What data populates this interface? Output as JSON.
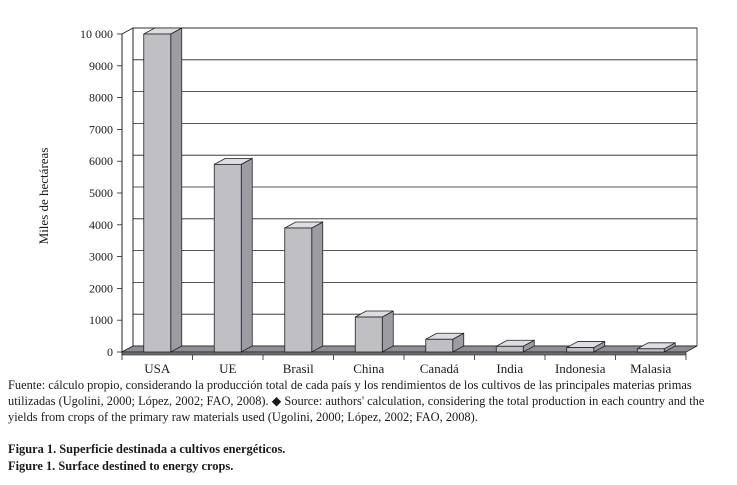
{
  "chart_data": {
    "type": "bar",
    "style": "3d-column",
    "ylabel": "Miles de hectáreas",
    "xlabel": "",
    "categories": [
      "USA",
      "UE",
      "Brasil",
      "China",
      "Canadá",
      "India",
      "Indonesia",
      "Malasia"
    ],
    "values": [
      10000,
      5900,
      3900,
      1100,
      400,
      180,
      140,
      100
    ],
    "ylim": [
      0,
      10000
    ],
    "yticks": [
      0,
      1000,
      2000,
      3000,
      4000,
      5000,
      6000,
      7000,
      8000,
      9000,
      10000
    ],
    "ytick_labels": [
      "0",
      "1000",
      "2000",
      "3000",
      "4000",
      "5000",
      "6000",
      "7000",
      "8000",
      "9000",
      "10 000"
    ],
    "grid": true,
    "legend": "none",
    "colors": {
      "bar_front": "#c0c0c4",
      "bar_top": "#dedee2",
      "bar_side": "#9c9ca2",
      "floor": "#8e8e94",
      "grid": "#222222"
    }
  },
  "source_es": "Fuente: cálculo propio, considerando la producción total de cada país y los rendimientos de los cultivos de las principales materias primas utilizadas (Ugolini, 2000; López, 2002; FAO, 2008).",
  "source_separator": "◆",
  "source_en": "Source: authors' calculation, considering the total production in each country and the yields from crops of the primary raw materials used (Ugolini, 2000; López, 2002; FAO, 2008).",
  "figure_es": "Figura 1. Superficie destinada a cultivos energéticos.",
  "figure_en": "Figure 1. Surface destined to energy crops."
}
